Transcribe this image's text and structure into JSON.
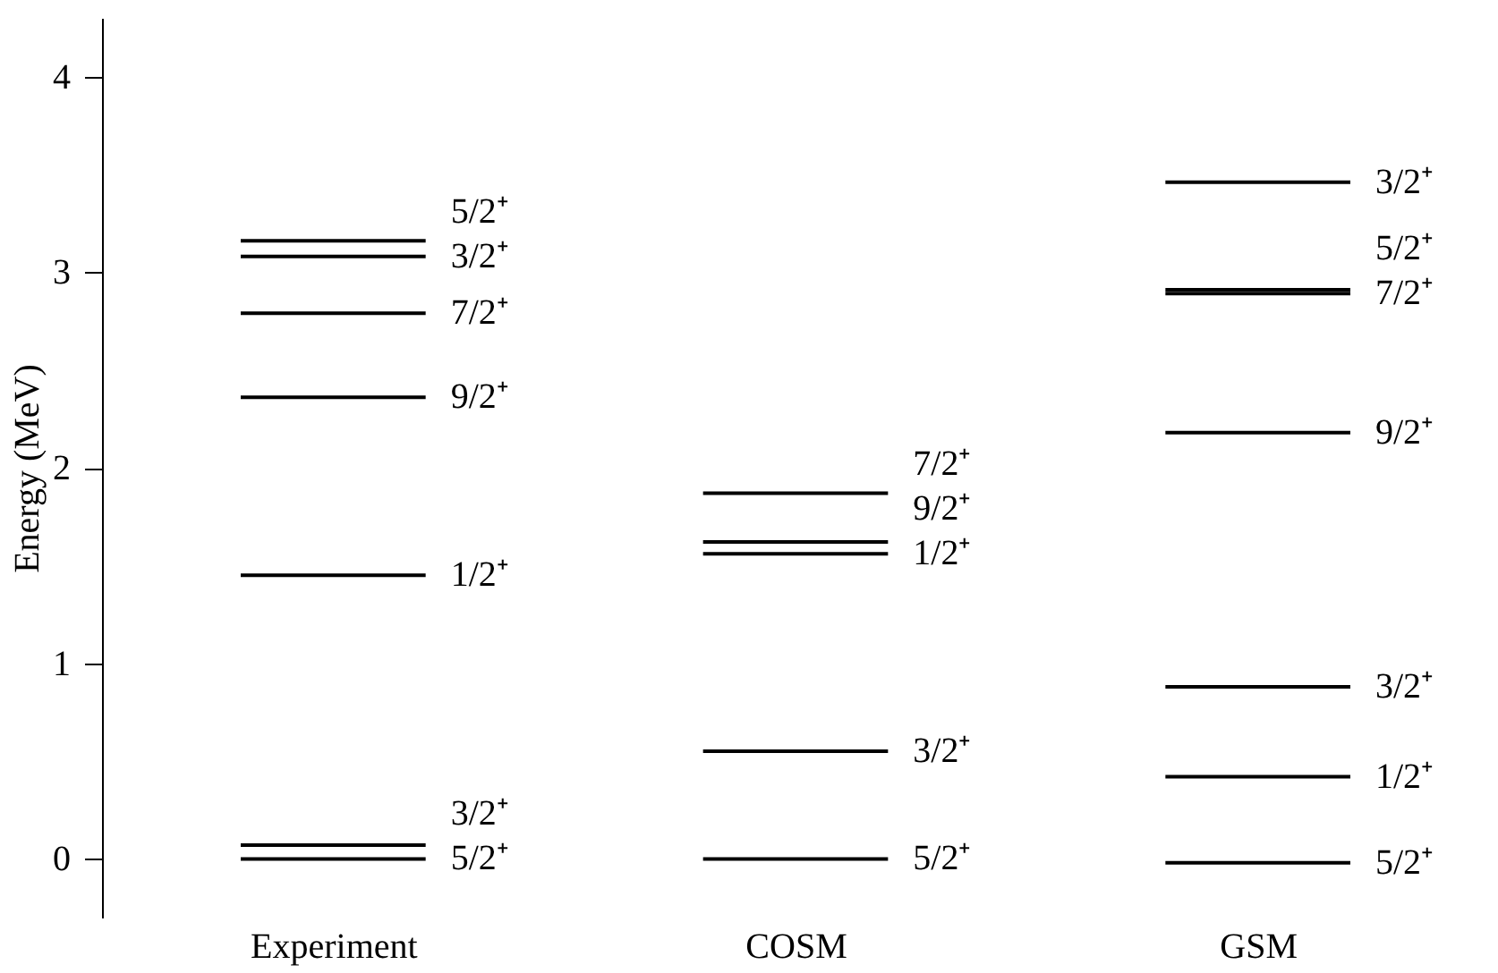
{
  "chart_data": {
    "type": "line",
    "ylabel": "Energy (MeV)",
    "categories": [
      null,
      null,
      "Experiment",
      null,
      null,
      null,
      null,
      "COSM",
      null,
      null,
      null,
      null,
      "GSM",
      null,
      null
    ],
    "ylim": [
      -0.3,
      4.3
    ],
    "yticks": [
      0,
      1,
      2,
      3,
      4
    ],
    "grid": false,
    "marker": "none",
    "line_style": "solid",
    "series": [
      {
        "name": "5/2⁺",
        "color": "#000000",
        "values": [
          null,
          0,
          0,
          0,
          null,
          null,
          null,
          null,
          null,
          null,
          null,
          null,
          null,
          null,
          null
        ]
      },
      {
        "name": "3/2⁺",
        "color": "#000000",
        "values": [
          null,
          0.07,
          0.07,
          0.07,
          null,
          null,
          null,
          null,
          null,
          null,
          null,
          null,
          null,
          null,
          null
        ]
      },
      {
        "name": "1/2⁺",
        "color": "#000000",
        "values": [
          null,
          1.45,
          1.45,
          1.45,
          null,
          null,
          null,
          null,
          null,
          null,
          null,
          null,
          null,
          null,
          null
        ]
      },
      {
        "name": "9/2⁺",
        "color": "#000000",
        "values": [
          null,
          2.36,
          2.36,
          2.36,
          null,
          null,
          null,
          null,
          null,
          null,
          null,
          null,
          null,
          null,
          null
        ]
      },
      {
        "name": "7/2⁺",
        "color": "#000000",
        "values": [
          null,
          2.79,
          2.79,
          2.79,
          null,
          null,
          null,
          null,
          null,
          null,
          null,
          null,
          null,
          null,
          null
        ]
      },
      {
        "name": "3/2⁺",
        "color": "#000000",
        "values": [
          null,
          3.08,
          3.08,
          3.08,
          null,
          null,
          null,
          null,
          null,
          null,
          null,
          null,
          null,
          null,
          null
        ]
      },
      {
        "name": "5/2⁺",
        "color": "#000000",
        "values": [
          null,
          3.16,
          3.16,
          3.16,
          null,
          null,
          null,
          null,
          null,
          null,
          null,
          null,
          null,
          null,
          null
        ]
      },
      {
        "name": "5/2⁺",
        "color": "#000000",
        "values": [
          null,
          null,
          null,
          null,
          null,
          null,
          0,
          0,
          0,
          null,
          null,
          null,
          null,
          null,
          null
        ]
      },
      {
        "name": "3/2⁺",
        "color": "#000000",
        "values": [
          null,
          null,
          null,
          null,
          null,
          null,
          0.55,
          0.55,
          0.55,
          null,
          null,
          null,
          null,
          null,
          null
        ]
      },
      {
        "name": "1/2⁺",
        "color": "#000000",
        "values": [
          null,
          null,
          null,
          null,
          null,
          null,
          1.56,
          1.56,
          1.56,
          null,
          null,
          null,
          null,
          null,
          null
        ]
      },
      {
        "name": "9/2⁺",
        "color": "#000000",
        "values": [
          null,
          null,
          null,
          null,
          null,
          null,
          1.62,
          1.62,
          1.62,
          null,
          null,
          null,
          null,
          null,
          null
        ]
      },
      {
        "name": "7/2⁺",
        "color": "#000000",
        "values": [
          null,
          null,
          null,
          null,
          null,
          null,
          1.87,
          1.87,
          1.87,
          null,
          null,
          null,
          null,
          null,
          null
        ]
      },
      {
        "name": "5/2⁺",
        "color": "#000000",
        "values": [
          null,
          null,
          null,
          null,
          null,
          null,
          null,
          null,
          null,
          null,
          null,
          -0.02,
          -0.02,
          -0.02,
          null
        ]
      },
      {
        "name": "1/2⁺",
        "color": "#000000",
        "values": [
          null,
          null,
          null,
          null,
          null,
          null,
          null,
          null,
          null,
          null,
          null,
          0.42,
          0.42,
          0.42,
          null
        ]
      },
      {
        "name": "3/2⁺",
        "color": "#000000",
        "values": [
          null,
          null,
          null,
          null,
          null,
          null,
          null,
          null,
          null,
          null,
          null,
          0.88,
          0.88,
          0.88,
          null
        ]
      },
      {
        "name": "9/2⁺",
        "color": "#000000",
        "values": [
          null,
          null,
          null,
          null,
          null,
          null,
          null,
          null,
          null,
          null,
          null,
          2.18,
          2.18,
          2.18,
          null
        ]
      },
      {
        "name": "7/2⁺",
        "color": "#000000",
        "values": [
          null,
          null,
          null,
          null,
          null,
          null,
          null,
          null,
          null,
          null,
          null,
          2.89,
          2.89,
          2.89,
          null
        ]
      },
      {
        "name": "5/2⁺",
        "color": "#000000",
        "values": [
          null,
          null,
          null,
          null,
          null,
          null,
          null,
          null,
          null,
          null,
          null,
          2.91,
          2.91,
          2.91,
          null
        ]
      },
      {
        "name": "3/2⁺",
        "color": "#000000",
        "values": [
          null,
          null,
          null,
          null,
          null,
          null,
          null,
          null,
          null,
          null,
          null,
          3.46,
          3.46,
          3.46,
          null
        ]
      }
    ]
  }
}
